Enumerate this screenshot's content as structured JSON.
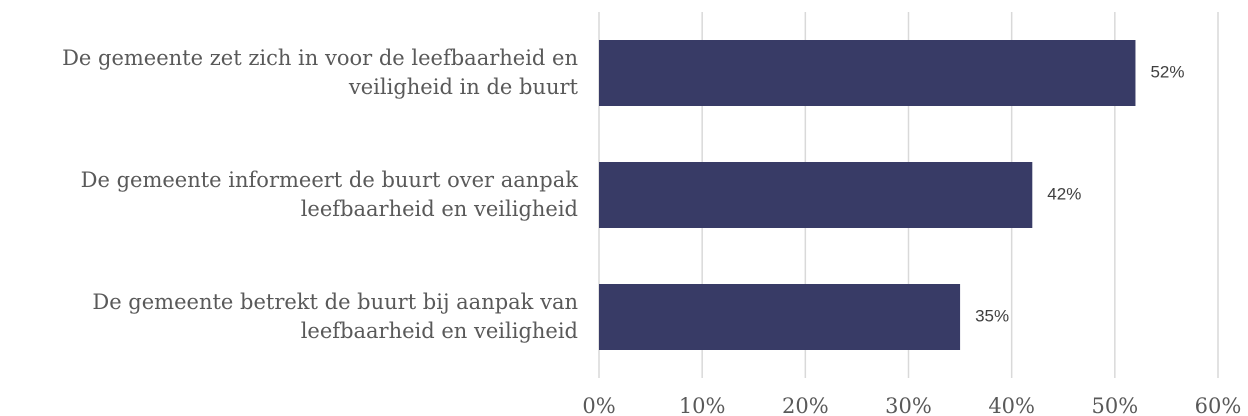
{
  "chart_data": {
    "type": "bar",
    "orientation": "horizontal",
    "categories": [
      "De gemeente zet zich in voor de leefbaarheid en veiligheid in de buurt",
      "De gemeente informeert de buurt over aanpak leefbaarheid en veiligheid",
      "De gemeente betrekt de buurt bij aanpak van leefbaarheid en veiligheid"
    ],
    "values": [
      52,
      42,
      35
    ],
    "value_labels": [
      "52%",
      "42%",
      "35%"
    ],
    "color": "#383b66",
    "xlim": [
      0,
      60
    ],
    "xticks": [
      {
        "value": 0,
        "label": "0%"
      },
      {
        "value": 10,
        "label": "10%"
      },
      {
        "value": 20,
        "label": "20%"
      },
      {
        "value": 30,
        "label": "30%"
      },
      {
        "value": 40,
        "label": "40%"
      },
      {
        "value": 50,
        "label": "50%"
      },
      {
        "value": 60,
        "label": "60%"
      }
    ],
    "grid": true
  }
}
